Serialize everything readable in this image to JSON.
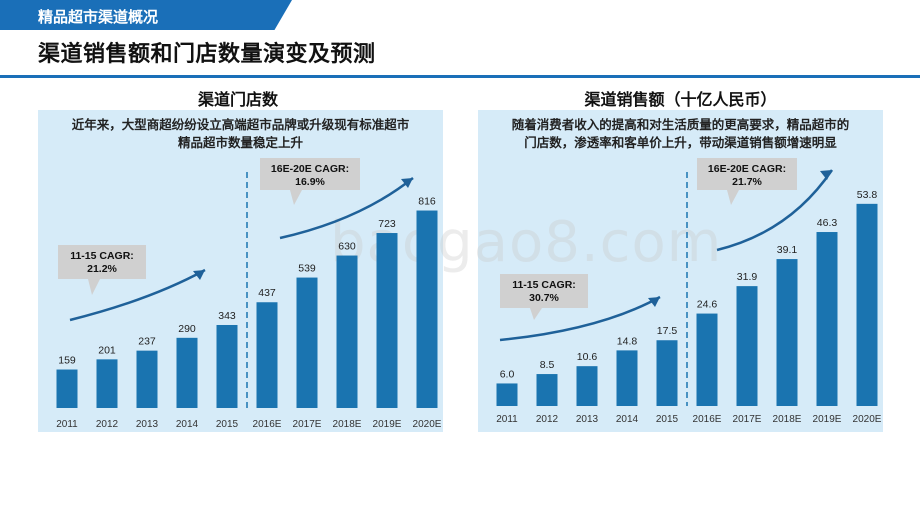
{
  "header": {
    "section_tab": "精品超市渠道概况",
    "page_title": "渠道销售额和门店数量演变及预测"
  },
  "watermark": "baogao8.com",
  "colors": {
    "brand": "#1a6fb8",
    "bar": "#1a74b0",
    "panel": "#d6ebf8",
    "callout": "#d0d0d0"
  },
  "chart_data": [
    {
      "type": "bar",
      "title": "渠道门店数",
      "note_lines": [
        "近年来，大型商超纷纷设立高端超市品牌或升级现有标准超市",
        "精品超市数量稳定上升"
      ],
      "categories": [
        "2011",
        "2012",
        "2013",
        "2014",
        "2015",
        "2016E",
        "2017E",
        "2018E",
        "2019E",
        "2020E"
      ],
      "values": [
        159,
        201,
        237,
        290,
        343,
        437,
        539,
        630,
        723,
        816
      ],
      "value_labels": [
        "159",
        "201",
        "237",
        "290",
        "343",
        "437",
        "539",
        "630",
        "723",
        "816"
      ],
      "ylim": [
        0,
        1000
      ],
      "grid": false,
      "forecast_divider_after": "2015",
      "annotations": [
        {
          "label": "11-15 CAGR:",
          "value": "21.2%"
        },
        {
          "label": "16E-20E CAGR:",
          "value": "16.9%"
        }
      ]
    },
    {
      "type": "bar",
      "title": "渠道销售额（十亿人民币）",
      "note_lines": [
        "随着消费者收入的提高和对生活质量的更高要求，精品超市的",
        "门店数，渗透率和客单价上升，带动渠道销售额增速明显"
      ],
      "categories": [
        "2011",
        "2012",
        "2013",
        "2014",
        "2015",
        "2016E",
        "2017E",
        "2018E",
        "2019E",
        "2020E"
      ],
      "values": [
        6.0,
        8.5,
        10.6,
        14.8,
        17.5,
        24.6,
        31.9,
        39.1,
        46.3,
        53.8
      ],
      "value_labels": [
        "6.0",
        "8.5",
        "10.6",
        "14.8",
        "17.5",
        "24.6",
        "31.9",
        "39.1",
        "46.3",
        "53.8"
      ],
      "ylim": [
        0,
        66
      ],
      "grid": false,
      "forecast_divider_after": "2015",
      "annotations": [
        {
          "label": "11-15 CAGR:",
          "value": "30.7%"
        },
        {
          "label": "16E-20E CAGR:",
          "value": "21.7%"
        }
      ]
    }
  ]
}
